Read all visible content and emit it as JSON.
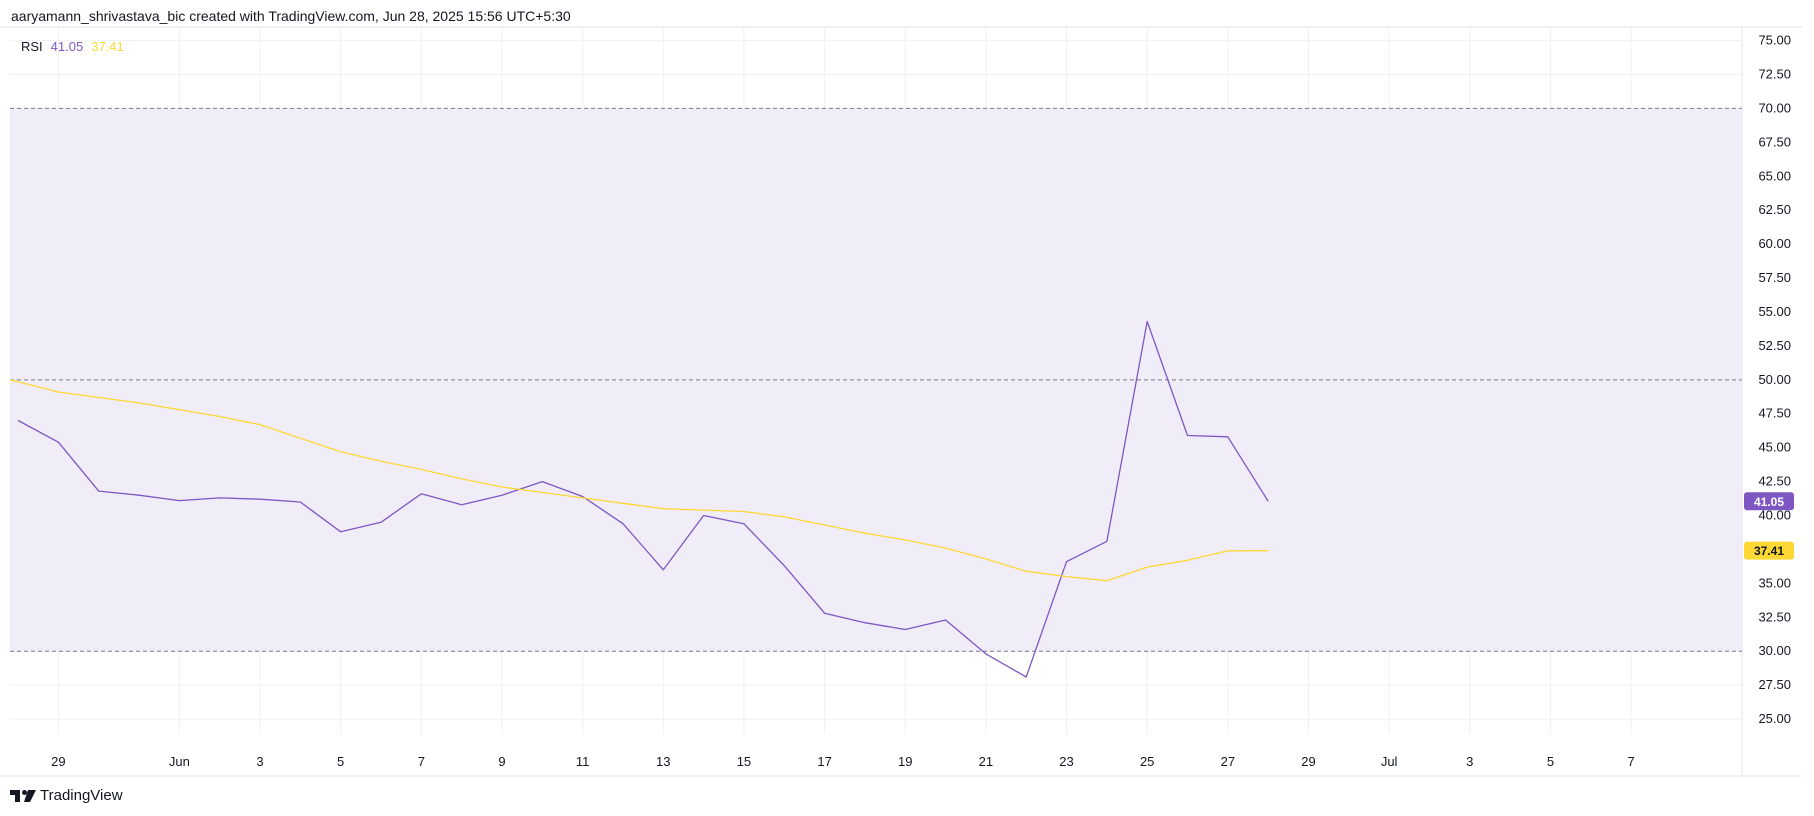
{
  "header": {
    "attribution": "aaryamann_shrivastava_bic created with TradingView.com, Jun 28, 2025 15:56 UTC+5:30"
  },
  "legend": {
    "indicator": "RSI",
    "rsi_value": "41.05",
    "ma_value": "37.41"
  },
  "footer": {
    "brand": "TradingView"
  },
  "colors": {
    "rsi_line": "#7e57c2",
    "ma_line": "#fdd835",
    "band_fill": "#f0ecf8",
    "grid": "#eef0f3",
    "dashed": "#787b86"
  },
  "chart_data": {
    "type": "line",
    "title": "",
    "xlabel": "",
    "ylabel": "",
    "ylim": [
      23.9,
      76
    ],
    "y_ticks": [
      "75.00",
      "72.50",
      "70.00",
      "67.50",
      "65.00",
      "62.50",
      "60.00",
      "57.50",
      "55.00",
      "52.50",
      "50.00",
      "47.50",
      "45.00",
      "42.50",
      "40.00",
      "37.50",
      "35.00",
      "32.50",
      "30.00",
      "27.50",
      "25.00"
    ],
    "x_tick_labels": [
      "29",
      "Jun",
      "3",
      "5",
      "7",
      "9",
      "11",
      "13",
      "15",
      "17",
      "19",
      "21",
      "23",
      "25",
      "27",
      "29",
      "Jul",
      "3",
      "5",
      "7"
    ],
    "x_ticks": [
      "2025-05-29",
      "2025-06-01",
      "2025-06-03",
      "2025-06-05",
      "2025-06-07",
      "2025-06-09",
      "2025-06-11",
      "2025-06-13",
      "2025-06-15",
      "2025-06-17",
      "2025-06-19",
      "2025-06-21",
      "2025-06-23",
      "2025-06-25",
      "2025-06-27",
      "2025-06-29",
      "2025-07-01",
      "2025-07-03",
      "2025-07-05",
      "2025-07-07"
    ],
    "x_range": [
      "2025-05-27T19:12",
      "2025-07-09T18:00"
    ],
    "bands": {
      "upper": 70,
      "middle": 50,
      "lower": 30
    },
    "grid": true,
    "series": [
      {
        "name": "RSI",
        "x": [
          "2025-05-28",
          "2025-05-29",
          "2025-05-30",
          "2025-05-31",
          "2025-06-01",
          "2025-06-02",
          "2025-06-03",
          "2025-06-04",
          "2025-06-05",
          "2025-06-06",
          "2025-06-07",
          "2025-06-08",
          "2025-06-09",
          "2025-06-10",
          "2025-06-11",
          "2025-06-12",
          "2025-06-13",
          "2025-06-14",
          "2025-06-15",
          "2025-06-16",
          "2025-06-17",
          "2025-06-18",
          "2025-06-19",
          "2025-06-20",
          "2025-06-21",
          "2025-06-22",
          "2025-06-23",
          "2025-06-24",
          "2025-06-25",
          "2025-06-26",
          "2025-06-27",
          "2025-06-28"
        ],
        "values": [
          47.0,
          45.4,
          41.8,
          41.5,
          41.1,
          41.3,
          41.2,
          41.0,
          38.8,
          39.5,
          41.6,
          40.8,
          41.5,
          42.5,
          41.4,
          39.4,
          36.0,
          40.0,
          39.4,
          36.3,
          32.8,
          32.1,
          31.6,
          32.3,
          29.8,
          28.1,
          36.6,
          38.1,
          54.3,
          45.9,
          45.8,
          41.05
        ]
      },
      {
        "name": "",
        "x": [
          "2025-05-27T19:12",
          "2025-05-29",
          "2025-05-30",
          "2025-05-31",
          "2025-06-01",
          "2025-06-02",
          "2025-06-03",
          "2025-06-04",
          "2025-06-05",
          "2025-06-06",
          "2025-06-07",
          "2025-06-08",
          "2025-06-09",
          "2025-06-10",
          "2025-06-11",
          "2025-06-12",
          "2025-06-13",
          "2025-06-14",
          "2025-06-15",
          "2025-06-16",
          "2025-06-17",
          "2025-06-18",
          "2025-06-19",
          "2025-06-20",
          "2025-06-21",
          "2025-06-22",
          "2025-06-23",
          "2025-06-24",
          "2025-06-25",
          "2025-06-26",
          "2025-06-27",
          "2025-06-28"
        ],
        "values": [
          50.0,
          49.1,
          48.7,
          48.3,
          47.8,
          47.3,
          46.7,
          45.7,
          44.7,
          44.0,
          43.4,
          42.7,
          42.1,
          41.7,
          41.3,
          40.9,
          40.5,
          40.4,
          40.3,
          39.9,
          39.3,
          38.7,
          38.2,
          37.6,
          36.8,
          35.9,
          35.5,
          35.2,
          36.2,
          36.7,
          37.4,
          37.41
        ]
      }
    ],
    "last_value_badges": [
      "41.05",
      "37.41"
    ]
  }
}
